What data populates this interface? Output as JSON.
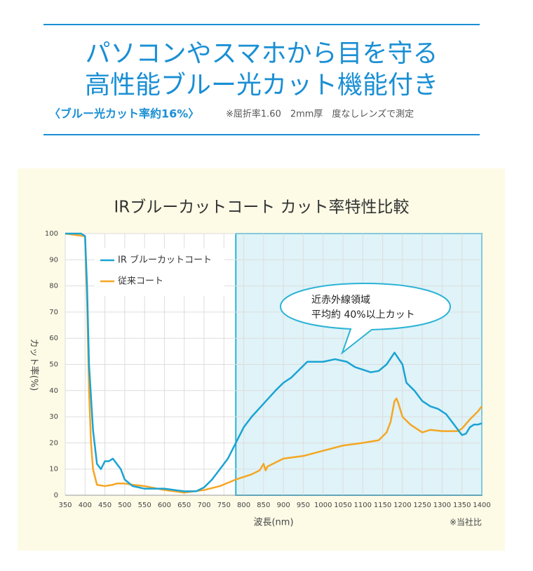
{
  "header": {
    "title": [
      "パソコンやスマホから目を守る",
      "高性能ブルー光カット機能付き"
    ],
    "subtitle": "〈ブルー光カット率約16%〉",
    "note": "※屈折率1.60　2mm厚　度なしレンズで測定"
  },
  "chart_data": {
    "type": "line",
    "title": "IRブルーカットコート カット率特性比較",
    "x_label": "波長(nm)",
    "y_label": "カット率(%)",
    "source_note": "※当社比",
    "annotation": [
      "近赤外線領域",
      "平均約 40%以上カット"
    ],
    "highlight": [
      780,
      1400
    ],
    "xlim": [
      350,
      1400
    ],
    "ylim": [
      0,
      100
    ],
    "xticks": [
      350,
      400,
      450,
      500,
      550,
      600,
      650,
      700,
      750,
      800,
      850,
      900,
      950,
      1000,
      1050,
      1100,
      1150,
      1200,
      1250,
      1300,
      1350,
      1400
    ],
    "yticks": [
      0,
      10,
      20,
      30,
      40,
      50,
      60,
      70,
      80,
      90,
      100
    ],
    "grid": true,
    "legend": "upper left",
    "series": [
      {
        "name": "IR ブルーカットコート",
        "color": "#1aa3d4",
        "x": [
          350,
          390,
          400,
          405,
          410,
          420,
          430,
          440,
          450,
          460,
          470,
          480,
          490,
          500,
          520,
          550,
          600,
          650,
          680,
          700,
          720,
          740,
          760,
          780,
          800,
          820,
          850,
          880,
          900,
          920,
          940,
          960,
          980,
          1000,
          1030,
          1060,
          1080,
          1100,
          1120,
          1140,
          1160,
          1180,
          1200,
          1210,
          1230,
          1250,
          1270,
          1290,
          1310,
          1330,
          1350,
          1360,
          1370,
          1380,
          1390,
          1400
        ],
        "values": [
          100,
          100,
          99,
          80,
          50,
          25,
          12,
          10,
          13,
          13,
          14,
          12,
          10,
          6,
          3.5,
          2.5,
          2.5,
          1.5,
          1.5,
          3,
          6,
          10,
          14,
          20,
          26,
          30,
          35,
          40,
          43,
          45,
          48,
          51,
          51,
          51,
          52,
          51,
          49,
          48,
          47,
          47.5,
          50,
          54.5,
          50,
          43,
          40,
          36,
          34,
          33,
          31,
          27,
          23,
          23.5,
          26,
          27,
          27,
          27.5
        ]
      },
      {
        "name": "従来コート",
        "color": "#f5a623",
        "x": [
          350,
          400,
          405,
          410,
          415,
          420,
          430,
          450,
          470,
          480,
          500,
          520,
          550,
          600,
          650,
          700,
          740,
          780,
          820,
          840,
          850,
          855,
          860,
          880,
          900,
          950,
          1000,
          1050,
          1100,
          1140,
          1160,
          1170,
          1180,
          1185,
          1190,
          1200,
          1220,
          1250,
          1270,
          1300,
          1340,
          1350,
          1370,
          1390,
          1400
        ],
        "values": [
          100,
          99,
          75,
          40,
          20,
          10,
          4,
          3.5,
          4,
          4.5,
          4.5,
          4,
          3.5,
          2,
          1,
          2,
          3.5,
          6,
          8,
          9.5,
          12,
          9.5,
          11,
          12.5,
          14,
          15,
          17,
          19,
          20,
          21,
          24,
          28,
          36,
          37,
          35,
          30,
          27,
          24,
          25,
          24.5,
          24.5,
          25.5,
          29,
          32,
          34
        ]
      }
    ]
  }
}
